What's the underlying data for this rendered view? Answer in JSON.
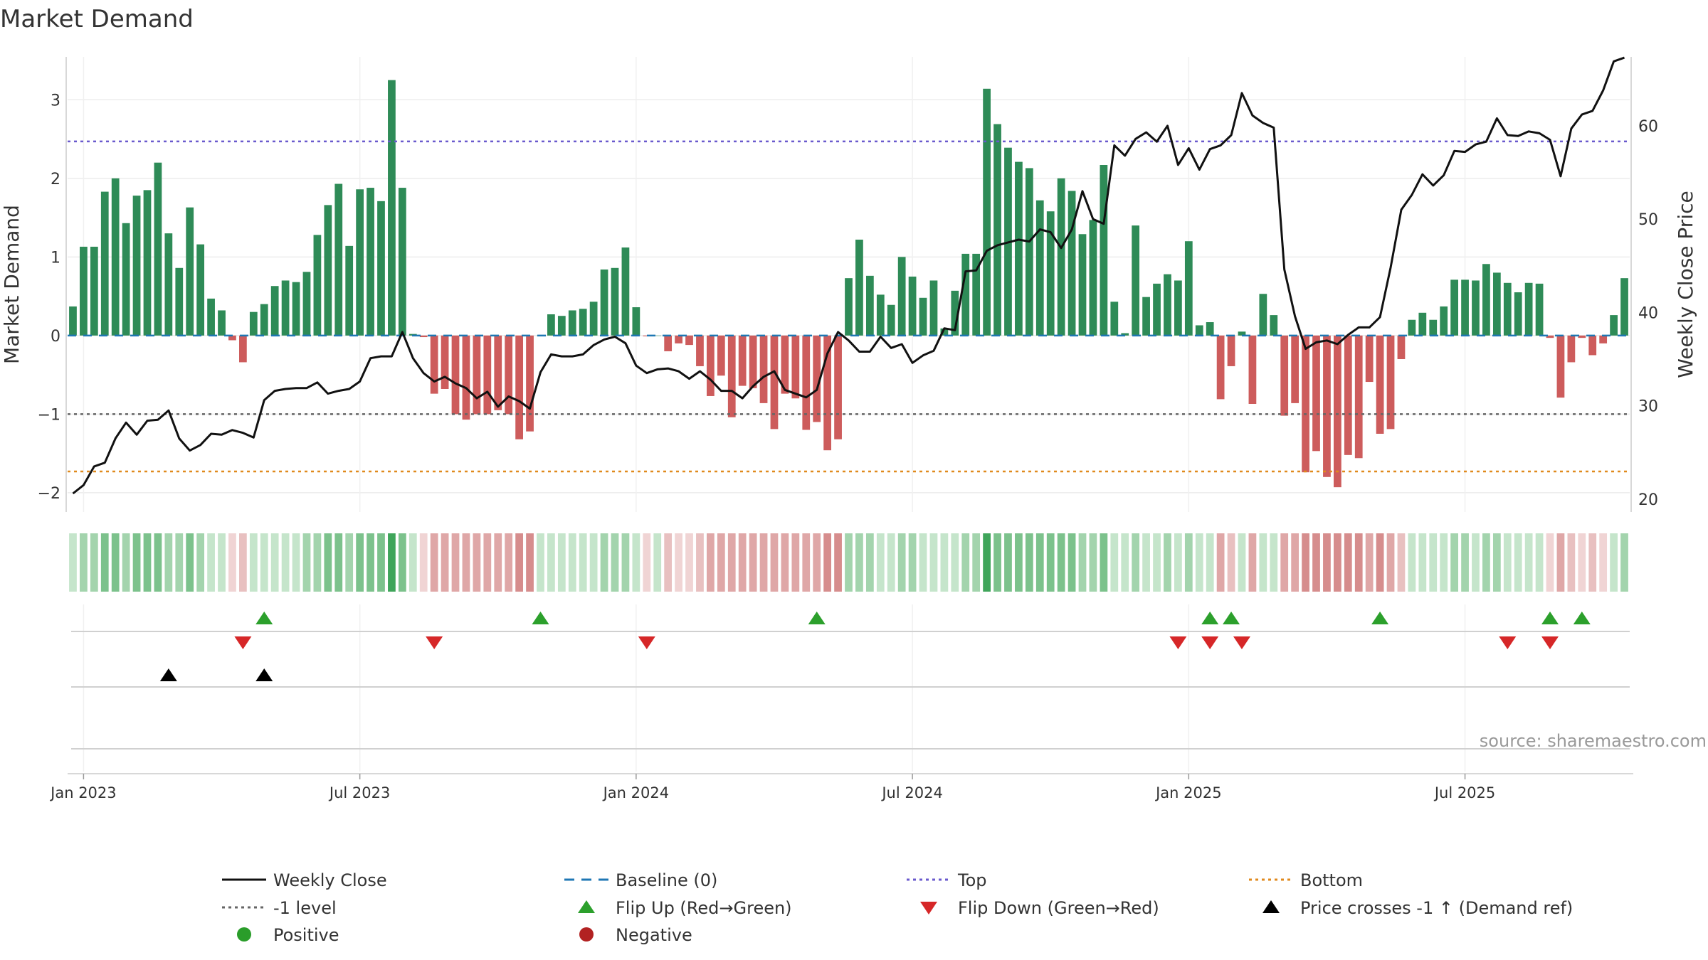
{
  "chart_data": {
    "type": "bar",
    "title": "Market Demand",
    "ylabel": "Market Demand",
    "y2label": "Weekly Close Price",
    "ylim": [
      -2.2,
      3.5
    ],
    "y2lim": [
      19,
      67
    ],
    "yticks": [
      -2,
      -1,
      0,
      1,
      2,
      3
    ],
    "y2ticks": [
      20,
      30,
      40,
      50,
      60
    ],
    "xtick_labels": [
      "Jan 2023",
      "Jul 2023",
      "Jan 2024",
      "Jul 2024",
      "Jan 2025",
      "Jul 2025"
    ],
    "xtick_weeks": [
      1,
      27,
      53,
      79,
      105,
      131
    ],
    "levels": {
      "top": 2.47,
      "minus_one": -1,
      "bottom": -1.73,
      "baseline": 0
    },
    "demand": [
      0.37,
      1.13,
      1.13,
      1.83,
      2.0,
      1.43,
      1.78,
      1.85,
      2.2,
      1.3,
      0.86,
      1.63,
      1.16,
      0.47,
      0.32,
      -0.06,
      -0.34,
      0.3,
      0.4,
      0.63,
      0.7,
      0.68,
      0.81,
      1.28,
      1.66,
      1.93,
      1.14,
      1.86,
      1.88,
      1.71,
      3.25,
      1.88,
      0.02,
      -0.02,
      -0.74,
      -0.68,
      -1.0,
      -1.07,
      -1.0,
      -1.0,
      -0.95,
      -1.0,
      -1.32,
      -1.22,
      0.0,
      0.27,
      0.25,
      0.32,
      0.34,
      0.43,
      0.84,
      0.86,
      1.12,
      0.36,
      -0.01,
      0.0,
      -0.2,
      -0.1,
      -0.12,
      -0.39,
      -0.77,
      -0.51,
      -1.04,
      -0.64,
      -0.67,
      -0.86,
      -1.19,
      -0.74,
      -0.8,
      -1.2,
      -1.1,
      -1.46,
      -1.32,
      0.73,
      1.22,
      0.76,
      0.52,
      0.39,
      1.0,
      0.75,
      0.48,
      0.7,
      0.09,
      0.57,
      1.04,
      1.04,
      3.14,
      2.69,
      2.39,
      2.21,
      2.13,
      1.72,
      1.58,
      2.0,
      1.84,
      1.29,
      1.47,
      2.17,
      0.43,
      0.03,
      1.4,
      0.49,
      0.66,
      0.78,
      0.7,
      1.2,
      0.13,
      0.17,
      -0.81,
      -0.39,
      0.05,
      -0.87,
      0.53,
      0.26,
      -1.02,
      -0.86,
      -1.74,
      -1.47,
      -1.8,
      -1.93,
      -1.52,
      -1.56,
      -0.59,
      -1.25,
      -1.19,
      -0.3,
      0.2,
      0.29,
      0.2,
      0.37,
      0.71,
      0.71,
      0.7,
      0.91,
      0.8,
      0.67,
      0.55,
      0.67,
      0.66,
      -0.03,
      -0.79,
      -0.34,
      -0.03,
      -0.25,
      -0.1,
      0.26,
      0.73
    ],
    "price": [
      20.6,
      21.5,
      23.5,
      23.9,
      26.5,
      28.2,
      26.9,
      28.4,
      28.5,
      29.5,
      26.5,
      25.2,
      25.8,
      27.0,
      26.9,
      27.4,
      27.1,
      26.6,
      30.6,
      31.6,
      31.8,
      31.9,
      31.9,
      32.5,
      31.3,
      31.6,
      31.8,
      32.6,
      35.1,
      35.3,
      35.3,
      37.9,
      35.1,
      33.5,
      32.6,
      33.1,
      32.4,
      31.9,
      30.8,
      31.5,
      29.9,
      31.0,
      30.5,
      29.7,
      33.6,
      35.5,
      35.3,
      35.3,
      35.5,
      36.5,
      37.1,
      37.4,
      36.7,
      34.3,
      33.5,
      33.9,
      34.0,
      33.7,
      32.9,
      33.7,
      32.8,
      31.6,
      31.6,
      30.8,
      32.1,
      33.1,
      33.7,
      31.7,
      31.3,
      30.9,
      31.7,
      35.6,
      37.9,
      37.0,
      35.8,
      35.8,
      37.4,
      36.2,
      36.6,
      34.6,
      35.4,
      35.9,
      38.3,
      38.1,
      44.4,
      44.5,
      46.6,
      47.2,
      47.5,
      47.8,
      47.6,
      48.9,
      48.6,
      46.9,
      48.9,
      53.0,
      50.0,
      49.5,
      57.9,
      56.8,
      58.6,
      59.3,
      58.3,
      60.0,
      55.8,
      57.6,
      55.3,
      57.5,
      57.9,
      59.0,
      63.5,
      61.1,
      60.3,
      59.8,
      44.6,
      39.6,
      36.1,
      36.8,
      37.0,
      36.6,
      37.6,
      38.4,
      38.4,
      39.5,
      44.8,
      51.0,
      52.6,
      54.8,
      53.6,
      54.7,
      57.3,
      57.2,
      58.0,
      58.3,
      60.8,
      59.0,
      58.9,
      59.4,
      59.2,
      58.5,
      54.6,
      59.7,
      61.2,
      61.6,
      63.8,
      66.9,
      67.3
    ],
    "flip_up_weeks": [
      18,
      44,
      70,
      107,
      109,
      123,
      139,
      142
    ],
    "flip_down_weeks": [
      16,
      34,
      54,
      104,
      107,
      110,
      135,
      139
    ],
    "price_cross_weeks": [
      9,
      18
    ],
    "source": "source: sharemaestro.com",
    "legend": [
      {
        "label": "Weekly Close",
        "style": "line"
      },
      {
        "label": "Baseline (0)",
        "style": "dash"
      },
      {
        "label": "Top",
        "style": "dot-purple"
      },
      {
        "label": "Bottom",
        "style": "dot-orange"
      },
      {
        "label": "-1 level",
        "style": "dot-gray"
      },
      {
        "label": "Flip Up (Red→Green)",
        "style": "tri-up-green"
      },
      {
        "label": "Flip Down (Green→Red)",
        "style": "tri-down-red"
      },
      {
        "label": "Price crosses -1 ↑ (Demand ref)",
        "style": "tri-up-black"
      },
      {
        "label": "Positive",
        "style": "dot-green"
      },
      {
        "label": "Negative",
        "style": "dot-red"
      }
    ]
  },
  "colors": {
    "positive": "#2e8b57",
    "negative": "#cd5c5c",
    "top": "#6a5acd",
    "bottom": "#e08a1e",
    "minus_one": "#666666",
    "baseline": "#1f77b4",
    "price": "#111111",
    "flip_up": "#2ca02c",
    "flip_down": "#d62728",
    "cross": "#000000",
    "dot_positive": "#2a9d2a",
    "dot_negative": "#b22222"
  }
}
